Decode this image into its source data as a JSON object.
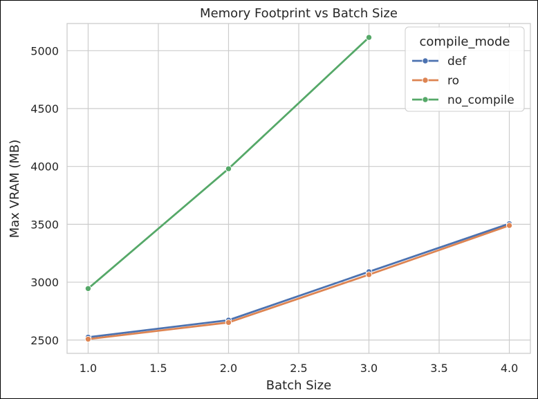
{
  "chart_data": {
    "type": "line",
    "title": "Memory Footprint vs Batch Size",
    "xlabel": "Batch Size",
    "ylabel": "Max VRAM (MB)",
    "xlim": [
      0.85,
      4.15
    ],
    "ylim": [
      2385,
      5235
    ],
    "x_ticks": [
      1.0,
      1.5,
      2.0,
      2.5,
      3.0,
      3.5,
      4.0
    ],
    "x_tick_labels": [
      "1.0",
      "1.5",
      "2.0",
      "2.5",
      "3.0",
      "3.5",
      "4.0"
    ],
    "y_ticks": [
      2500,
      3000,
      3500,
      4000,
      4500,
      5000
    ],
    "y_tick_labels": [
      "2500",
      "3000",
      "3500",
      "4000",
      "4500",
      "5000"
    ],
    "grid": true,
    "legend": {
      "title": "compile_mode",
      "position": "top-right"
    },
    "series": [
      {
        "name": "def",
        "color": "#4c72b0",
        "x": [
          1,
          2,
          3,
          4
        ],
        "y": [
          2525,
          2672,
          3090,
          3505
        ]
      },
      {
        "name": "ro",
        "color": "#dd8452",
        "x": [
          1,
          2,
          3,
          4
        ],
        "y": [
          2508,
          2652,
          3065,
          3490
        ]
      },
      {
        "name": "no_compile",
        "color": "#55a868",
        "x": [
          1,
          2,
          3
        ],
        "y": [
          2945,
          3980,
          5115
        ]
      }
    ]
  }
}
